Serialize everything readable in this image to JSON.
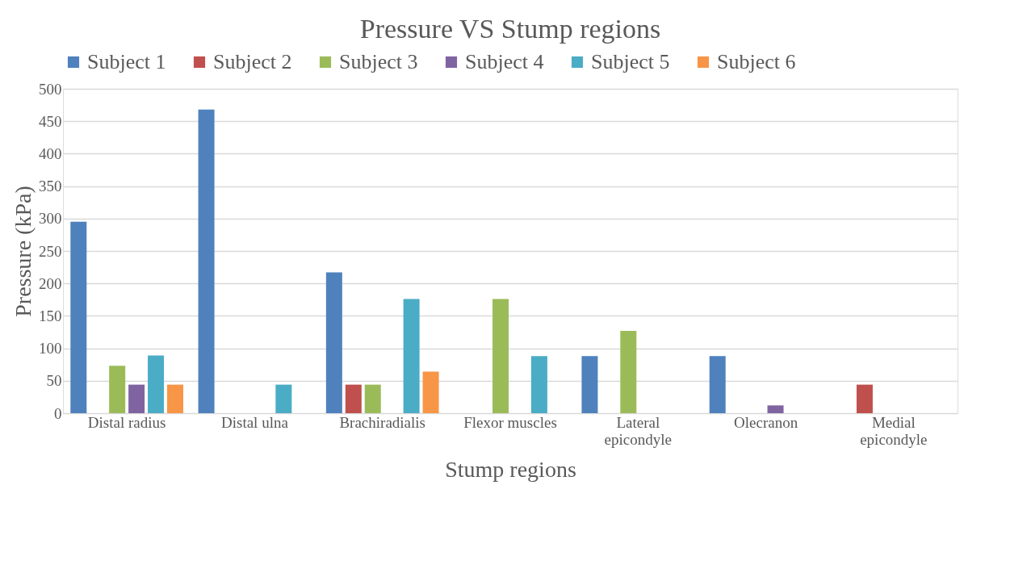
{
  "chart_data": {
    "type": "bar",
    "title": "Pressure VS Stump regions",
    "xlabel": "Stump regions",
    "ylabel": "Pressure (kPa)",
    "categories": [
      "Distal radius",
      "Distal ulna",
      "Brachiradialis",
      "Flexor muscles",
      "Lateral epicondyle",
      "Olecranon",
      "Medial epicondyle"
    ],
    "series": [
      {
        "name": "Subject 1",
        "color": "#4f81bd",
        "values": [
          295,
          468,
          217,
          null,
          88,
          88,
          null
        ]
      },
      {
        "name": "Subject 2",
        "color": "#c0504d",
        "values": [
          null,
          null,
          44,
          null,
          null,
          null,
          44
        ]
      },
      {
        "name": "Subject 3",
        "color": "#9bbb59",
        "values": [
          73,
          null,
          44,
          176,
          127,
          null,
          null
        ]
      },
      {
        "name": "Subject 4",
        "color": "#8064a2",
        "values": [
          44,
          null,
          null,
          null,
          null,
          12,
          null
        ]
      },
      {
        "name": "Subject 5",
        "color": "#4bacc6",
        "values": [
          89,
          44,
          176,
          88,
          null,
          null,
          null
        ]
      },
      {
        "name": "Subject 6",
        "color": "#f79646",
        "values": [
          44,
          null,
          64,
          null,
          null,
          null,
          null
        ]
      }
    ],
    "ylim": [
      0,
      500
    ],
    "yticks": [
      0,
      50,
      100,
      150,
      200,
      250,
      300,
      350,
      400,
      450,
      500
    ],
    "grid": "y",
    "legend": "top"
  }
}
